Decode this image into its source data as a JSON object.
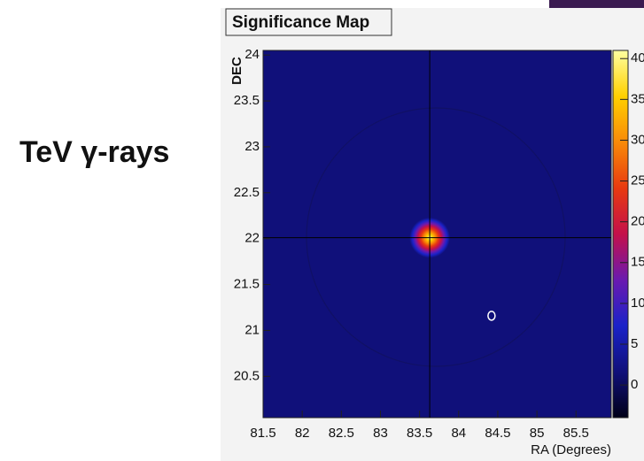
{
  "side_label": "TeV γ-rays",
  "chart_data": {
    "type": "heatmap",
    "title": "Significance Map",
    "xlabel": "RA (Degrees)",
    "ylabel": "DEC",
    "xlim": [
      81.5,
      85.95
    ],
    "xticks": [
      81.5,
      82,
      82.5,
      83,
      83.5,
      84,
      84.5,
      85,
      85.5
    ],
    "ylim": [
      20.05,
      24.05
    ],
    "yticks": [
      20.5,
      21,
      21.5,
      22,
      22.5,
      23,
      23.5,
      24
    ],
    "zlim": [
      -4,
      41
    ],
    "zticks": [
      0,
      5,
      10,
      15,
      20,
      25,
      30,
      35,
      40
    ],
    "colorscale": [
      "#000018",
      "#10107a",
      "#1a22c8",
      "#6a1ab0",
      "#c4104a",
      "#e83a10",
      "#f88a08",
      "#ffd000",
      "#ffffa0"
    ],
    "background_value": 2,
    "peak": {
      "x": 83.63,
      "y": 22.01,
      "value": 40
    },
    "marker": {
      "x": 84.42,
      "y": 21.16
    }
  }
}
